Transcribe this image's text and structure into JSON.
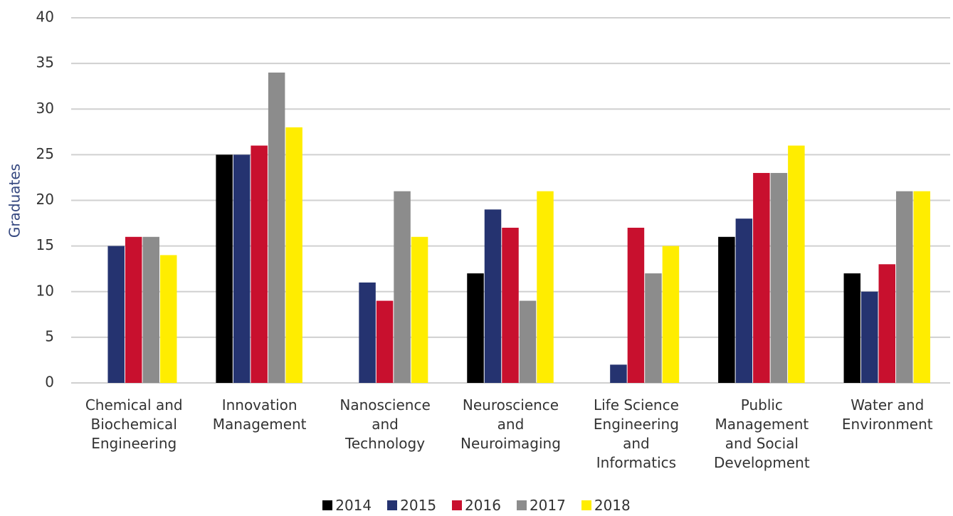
{
  "chart_data": {
    "type": "bar",
    "y_label": "Graduates",
    "categories": [
      "Chemical and Biochemical Engineering",
      "Innovation Management",
      "Nanoscience and Technology",
      "Neuroscience and Neuroimaging",
      "Life Science Engineering and Informatics",
      "Public Management and Social Development",
      "Water and Environment"
    ],
    "series": [
      {
        "name": "2014",
        "color": "#000000",
        "values": [
          null,
          25,
          null,
          12,
          null,
          16,
          12
        ]
      },
      {
        "name": "2015",
        "color": "#253370",
        "values": [
          15,
          25,
          11,
          19,
          2,
          18,
          10
        ]
      },
      {
        "name": "2016",
        "color": "#c8102e",
        "values": [
          16,
          26,
          9,
          17,
          17,
          23,
          13
        ]
      },
      {
        "name": "2017",
        "color": "#8c8c8c",
        "values": [
          16,
          34,
          21,
          9,
          12,
          23,
          21
        ]
      },
      {
        "name": "2018",
        "color": "#ffed00",
        "values": [
          14,
          28,
          16,
          21,
          15,
          26,
          21
        ]
      }
    ],
    "ylim": [
      0,
      40
    ],
    "yticks": [
      0,
      5,
      10,
      15,
      20,
      25,
      30,
      35,
      40
    ],
    "grid": true,
    "legend": "bottom"
  }
}
